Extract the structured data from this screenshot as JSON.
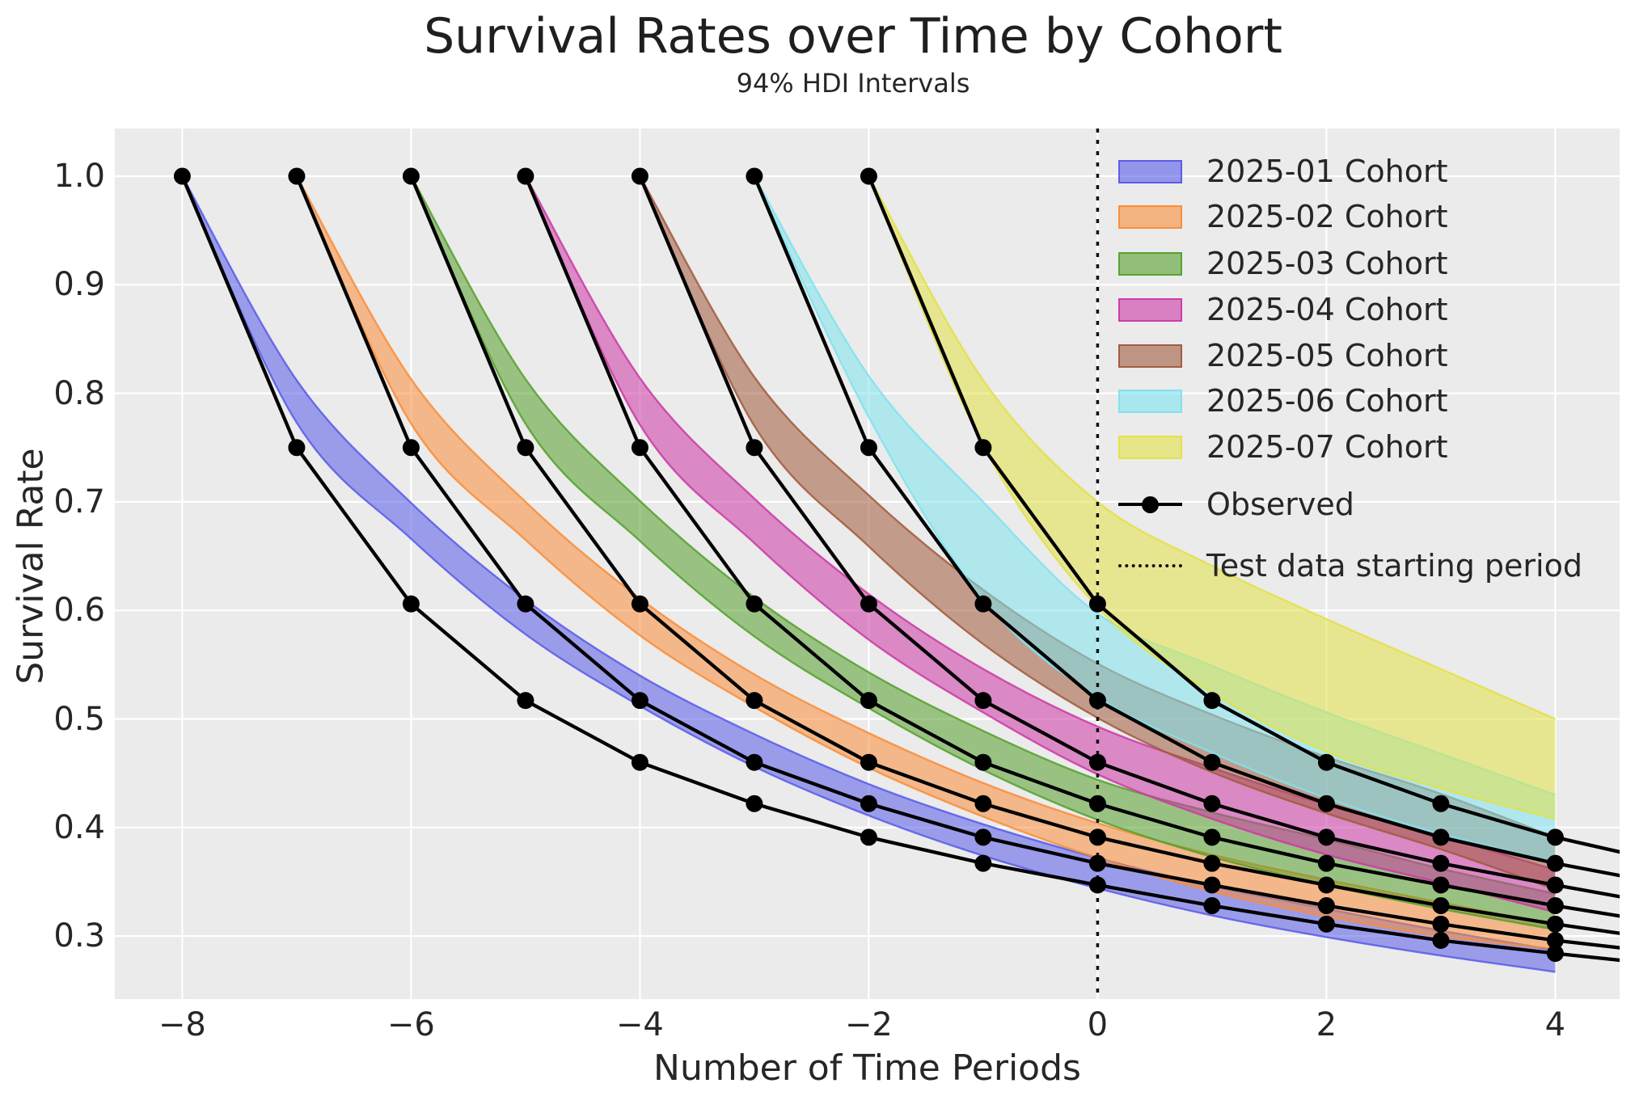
{
  "figure": {
    "background": "#ffffff",
    "plot_background": "#ebebeb",
    "grid_color": "#ffffff",
    "text_color": "#262626",
    "observed_color": "#000000"
  },
  "chart_data": {
    "type": "line",
    "title": "Survival Rates over Time by Cohort",
    "subtitle": "94% HDI Intervals",
    "xlabel": "Number of Time Periods",
    "ylabel": "Survival Rate",
    "x_ticks": [
      -8,
      -6,
      -4,
      -2,
      0,
      2,
      4
    ],
    "x_tick_labels": [
      "−8",
      "−6",
      "−4",
      "−2",
      "0",
      "2",
      "4"
    ],
    "y_ticks": [
      1.0,
      0.9,
      0.8,
      0.7,
      0.6,
      0.5,
      0.4,
      0.3
    ],
    "y_tick_labels": [
      "1.0",
      "0.9",
      "0.8",
      "0.7",
      "0.6",
      "0.5",
      "0.4",
      "0.3"
    ],
    "xlim": [
      -8.59,
      4.56
    ],
    "ylim": [
      0.243,
      1.045
    ],
    "grid": true,
    "legend_position": "upper right",
    "hdi_probability": "94%",
    "test_data_start_x": 0,
    "legend_observed_label": "Observed",
    "legend_test_label": "Test data starting period",
    "observed_retention_by_age": [
      1.0,
      0.75,
      0.606,
      0.517,
      0.46,
      0.422,
      0.391,
      0.367,
      0.347,
      0.328,
      0.311,
      0.296,
      0.284,
      0.273
    ],
    "cohorts": [
      {
        "label": "2025-01 Cohort",
        "color": "#575be9",
        "start_period": -8,
        "observed": [
          1.0,
          0.75,
          0.606,
          0.517,
          0.46,
          0.422,
          0.391,
          0.367,
          0.347,
          0.328,
          0.311,
          0.296,
          0.284
        ],
        "next_period_y": 0.273,
        "hdi_lower": [
          1.0,
          0.773,
          0.666,
          0.578,
          0.512,
          0.456,
          0.411,
          0.374,
          0.344,
          0.319,
          0.299,
          0.282,
          0.267
        ],
        "hdi_upper": [
          1.0,
          0.812,
          0.699,
          0.61,
          0.54,
          0.486,
          0.44,
          0.403,
          0.372,
          0.346,
          0.325,
          0.305,
          0.287
        ]
      },
      {
        "label": "2025-02 Cohort",
        "color": "#f98d38",
        "start_period": -7,
        "observed": [
          1.0,
          0.75,
          0.606,
          0.517,
          0.46,
          0.422,
          0.391,
          0.367,
          0.347,
          0.328,
          0.311,
          0.296
        ],
        "next_period_y": 0.284,
        "hdi_lower": [
          1.0,
          0.772,
          0.665,
          0.577,
          0.511,
          0.455,
          0.41,
          0.372,
          0.341,
          0.318,
          0.3,
          0.288
        ],
        "hdi_upper": [
          1.0,
          0.813,
          0.7,
          0.611,
          0.541,
          0.487,
          0.441,
          0.404,
          0.375,
          0.352,
          0.331,
          0.31
        ]
      },
      {
        "label": "2025-03 Cohort",
        "color": "#55a02c",
        "start_period": -6,
        "observed": [
          1.0,
          0.75,
          0.606,
          0.517,
          0.46,
          0.422,
          0.391,
          0.367,
          0.347,
          0.328,
          0.311
        ],
        "next_period_y": 0.296,
        "hdi_lower": [
          1.0,
          0.772,
          0.664,
          0.576,
          0.51,
          0.453,
          0.407,
          0.373,
          0.347,
          0.325,
          0.306
        ],
        "hdi_upper": [
          1.0,
          0.813,
          0.701,
          0.612,
          0.543,
          0.489,
          0.444,
          0.414,
          0.389,
          0.362,
          0.339
        ]
      },
      {
        "label": "2025-04 Cohort",
        "color": "#cc38a6",
        "start_period": -5,
        "observed": [
          1.0,
          0.75,
          0.606,
          0.517,
          0.46,
          0.422,
          0.391,
          0.367,
          0.347,
          0.328
        ],
        "next_period_y": 0.311,
        "hdi_lower": [
          1.0,
          0.771,
          0.662,
          0.573,
          0.506,
          0.449,
          0.408,
          0.375,
          0.349,
          0.322
        ],
        "hdi_upper": [
          1.0,
          0.814,
          0.703,
          0.615,
          0.546,
          0.493,
          0.455,
          0.421,
          0.392,
          0.361
        ]
      },
      {
        "label": "2025-05 Cohort",
        "color": "#a05a3c",
        "start_period": -4,
        "observed": [
          1.0,
          0.75,
          0.606,
          0.517,
          0.46,
          0.422,
          0.391,
          0.367,
          0.347
        ],
        "next_period_y": 0.328,
        "hdi_lower": [
          1.0,
          0.77,
          0.659,
          0.569,
          0.501,
          0.451,
          0.413,
          0.38,
          0.343
        ],
        "hdi_upper": [
          1.0,
          0.815,
          0.706,
          0.619,
          0.551,
          0.504,
          0.465,
          0.431,
          0.391
        ]
      },
      {
        "label": "2025-06 Cohort",
        "color": "#7fe3ee",
        "start_period": -3,
        "observed": [
          1.0,
          0.75,
          0.606,
          0.517,
          0.46,
          0.422,
          0.391,
          0.367
        ],
        "next_period_y": 0.347,
        "hdi_lower": [
          1.0,
          0.778,
          0.61,
          0.52,
          0.469,
          0.427,
          0.394,
          0.368
        ],
        "hdi_upper": [
          1.0,
          0.816,
          0.7,
          0.597,
          0.549,
          0.506,
          0.468,
          0.43
        ]
      },
      {
        "label": "2025-07 Cohort",
        "color": "#e3e145",
        "start_period": -2,
        "observed": [
          1.0,
          0.75,
          0.606,
          0.517,
          0.46,
          0.422,
          0.391
        ],
        "next_period_y": 0.367,
        "hdi_lower": [
          1.0,
          0.752,
          0.603,
          0.524,
          0.47,
          0.436,
          0.408
        ],
        "hdi_upper": [
          1.0,
          0.812,
          0.7,
          0.641,
          0.592,
          0.546,
          0.5
        ]
      }
    ]
  }
}
